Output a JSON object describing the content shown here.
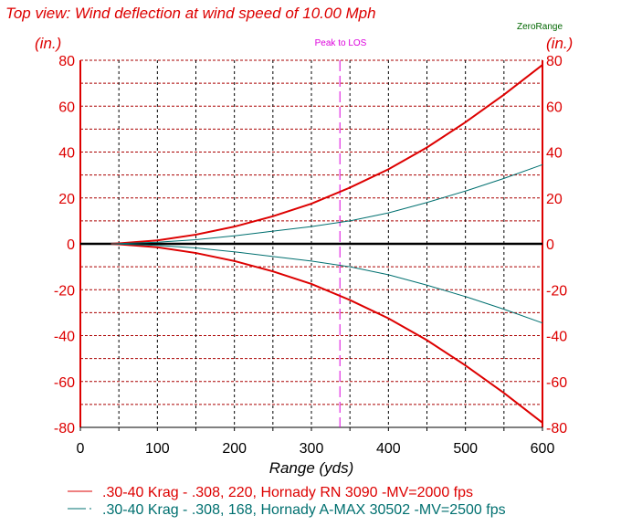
{
  "chart_data": {
    "type": "line",
    "title": "Top view: Wind deflection at wind speed of 10.00 Mph",
    "xlabel": "Range (yds)",
    "ylabel_left": "(in.)",
    "ylabel_right": "(in.)",
    "xlim": [
      0,
      600
    ],
    "ylim": [
      -80,
      80
    ],
    "x_ticks": [
      0,
      100,
      200,
      300,
      400,
      500,
      600
    ],
    "y_ticks": [
      80,
      60,
      40,
      20,
      0,
      -20,
      -40,
      -60,
      -80
    ],
    "grid": true,
    "annotations": {
      "zero_range": "ZeroRange",
      "peak_label": "Peak to LOS",
      "peak_range": 337
    },
    "x": [
      40,
      50,
      100,
      150,
      200,
      250,
      300,
      350,
      400,
      450,
      500,
      550,
      600
    ],
    "series": [
      {
        "name": ".30-40 Krag - .308, 220, Hornady RN 3090 -MV=2000 fps",
        "color": "#dd0000",
        "mirrored": true,
        "values": [
          0,
          0.2,
          1.5,
          4,
          7.5,
          12,
          17.5,
          24.5,
          32.5,
          42,
          53,
          65,
          78
        ]
      },
      {
        "name": ".30-40 Krag - .308, 168, Hornady A-MAX 30502 -MV=2500 fps",
        "color": "#007070",
        "mirrored": true,
        "values": [
          0,
          0.1,
          0.7,
          1.8,
          3.5,
          5.5,
          7.5,
          10,
          13.5,
          18,
          23,
          28.5,
          34.5
        ]
      }
    ],
    "legend_position": "bottom-left"
  }
}
